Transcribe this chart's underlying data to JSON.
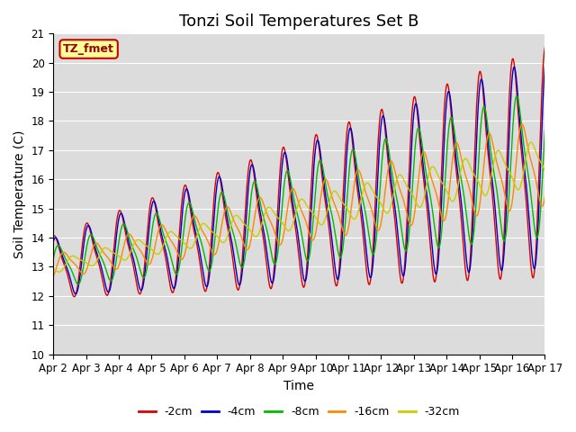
{
  "title": "Tonzi Soil Temperatures Set B",
  "xlabel": "Time",
  "ylabel": "Soil Temperature (C)",
  "ylim": [
    10.0,
    21.0
  ],
  "yticks": [
    10.0,
    11.0,
    12.0,
    13.0,
    14.0,
    15.0,
    16.0,
    17.0,
    18.0,
    19.0,
    20.0,
    21.0
  ],
  "xtick_labels": [
    "Apr 2",
    "Apr 3",
    "Apr 4",
    "Apr 5",
    "Apr 6",
    "Apr 7",
    "Apr 8",
    "Apr 9",
    "Apr 10",
    "Apr 11",
    "Apr 12",
    "Apr 13",
    "Apr 14",
    "Apr 15",
    "Apr 16",
    "Apr 17"
  ],
  "line_colors": [
    "#dd0000",
    "#0000cc",
    "#00bb00",
    "#ff8800",
    "#cccc00"
  ],
  "line_labels": [
    "-2cm",
    "-4cm",
    "-8cm",
    "-16cm",
    "-32cm"
  ],
  "background_color": "#dcdcdc",
  "grid_color": "#ffffff",
  "annotation_text": "TZ_fmet",
  "annotation_bg": "#ffff99",
  "annotation_border": "#cc0000",
  "title_fontsize": 13,
  "axis_label_fontsize": 10,
  "tick_fontsize": 8.5
}
